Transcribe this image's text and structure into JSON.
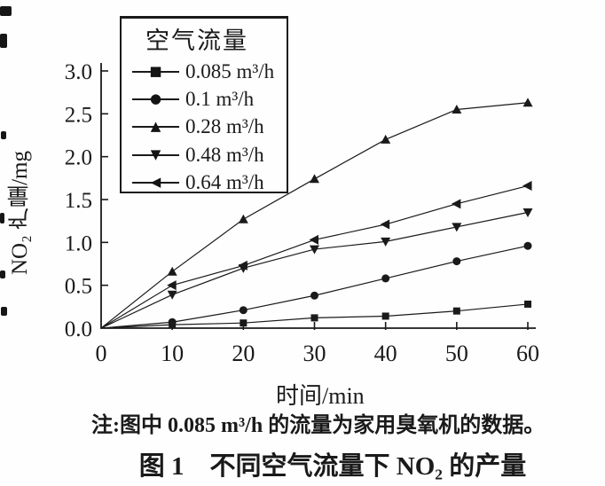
{
  "figure": {
    "note": "注:图中 0.085 m³/h 的流量为家用臭氧机的数据。",
    "caption": "图 1　不同空气流量下 NO₂ 的产量"
  },
  "chart_data": {
    "type": "line",
    "title": "",
    "xlabel": "时间/min",
    "ylabel": "NO₂ 产量/mg",
    "xlim": [
      0,
      60
    ],
    "ylim": [
      0,
      3.0
    ],
    "x_ticks": [
      0,
      10,
      20,
      30,
      40,
      50,
      60
    ],
    "y_ticks": [
      0.0,
      0.5,
      1.0,
      1.5,
      2.0,
      2.5,
      3.0
    ],
    "grid": false,
    "legend_title": "空气流量",
    "legend_position": "top-left",
    "ink_color": "#1a1a1a",
    "x": [
      0,
      10,
      20,
      30,
      40,
      50,
      60
    ],
    "series": [
      {
        "name": "0.085 m³/h",
        "marker": "square",
        "marker_glyph": "■",
        "values": [
          0,
          0.04,
          0.06,
          0.12,
          0.14,
          0.2,
          0.28
        ]
      },
      {
        "name": "0.1 m³/h",
        "marker": "circle",
        "marker_glyph": "●",
        "values": [
          0,
          0.07,
          0.21,
          0.38,
          0.58,
          0.78,
          0.96
        ]
      },
      {
        "name": "0.28 m³/h",
        "marker": "triangle-up",
        "marker_glyph": "▲",
        "values": [
          0,
          0.66,
          1.27,
          1.74,
          2.2,
          2.55,
          2.63
        ]
      },
      {
        "name": "0.48 m³/h",
        "marker": "triangle-down",
        "marker_glyph": "▼",
        "values": [
          0,
          0.39,
          0.7,
          0.92,
          1.01,
          1.18,
          1.35
        ]
      },
      {
        "name": "0.64 m³/h",
        "marker": "triangle-left",
        "marker_glyph": "◀",
        "values": [
          0,
          0.5,
          0.73,
          1.03,
          1.21,
          1.45,
          1.66
        ]
      }
    ]
  }
}
